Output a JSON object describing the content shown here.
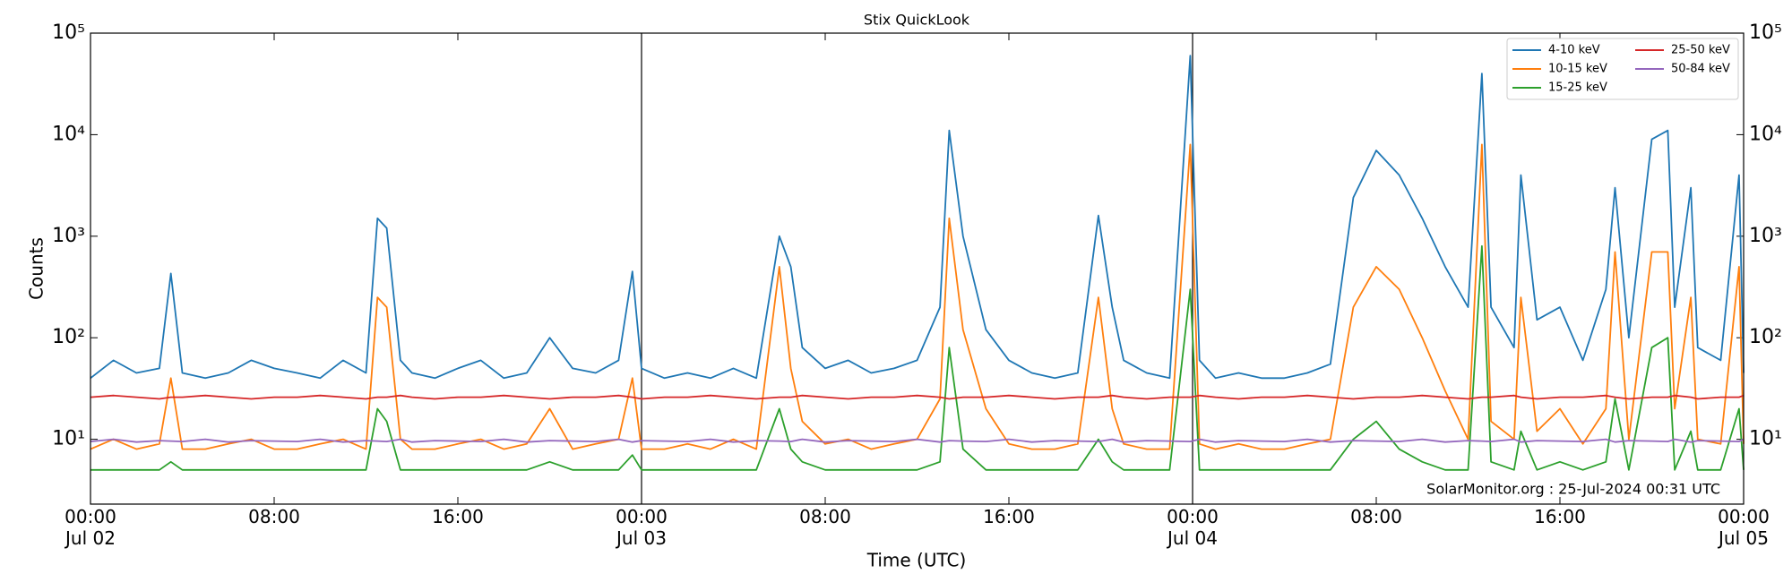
{
  "chart_data": {
    "type": "line",
    "title": "Stix QuickLook",
    "x_label": "Time (UTC)",
    "y_label": "Counts",
    "annotation": "SolarMonitor.org : 25-Jul-2024 00:31 UTC",
    "log_y": true,
    "legend": "upper right",
    "legend_columns": 2,
    "xlim": [
      0,
      72
    ],
    "ylim": [
      2.3,
      100000
    ],
    "xticks": [
      {
        "value": 0,
        "label": "00:00\nJul 02"
      },
      {
        "value": 8,
        "label": "08:00"
      },
      {
        "value": 16,
        "label": "16:00"
      },
      {
        "value": 24,
        "label": "00:00\nJul 03"
      },
      {
        "value": 32,
        "label": "08:00"
      },
      {
        "value": 40,
        "label": "16:00"
      },
      {
        "value": 48,
        "label": "00:00\nJul 04"
      },
      {
        "value": 56,
        "label": "08:00"
      },
      {
        "value": 64,
        "label": "16:00"
      },
      {
        "value": 72,
        "label": "00:00\nJul 05"
      }
    ],
    "yticks": [
      {
        "value": 10,
        "label": "10¹"
      },
      {
        "value": 100,
        "label": "10²"
      },
      {
        "value": 1000,
        "label": "10³"
      },
      {
        "value": 10000,
        "label": "10⁴"
      },
      {
        "value": 100000,
        "label": "10⁵"
      }
    ],
    "x": [
      0,
      1,
      2,
      3,
      3.5,
      4,
      5,
      6,
      7,
      8,
      9,
      10,
      11,
      12,
      12.5,
      12.9,
      13.5,
      14,
      15,
      16,
      17,
      18,
      19,
      20,
      21,
      22,
      23,
      23.6,
      24,
      25,
      26,
      27,
      28,
      29,
      30,
      30.5,
      31,
      32,
      33,
      34,
      35,
      36,
      37,
      37.4,
      38,
      39,
      40,
      41,
      42,
      43,
      43.9,
      44.5,
      45,
      46,
      47,
      47.9,
      48.3,
      49,
      50,
      51,
      52,
      53,
      54,
      55,
      56,
      57,
      58,
      59,
      60,
      60.6,
      61,
      62,
      62.3,
      63,
      64,
      65,
      66,
      66.4,
      67,
      68,
      68.7,
      69,
      69.7,
      70,
      71,
      71.8,
      72
    ],
    "series": [
      {
        "name": "4-10 keV",
        "color": "#1f77b4",
        "values": [
          40,
          60,
          45,
          50,
          430,
          45,
          40,
          45,
          60,
          50,
          45,
          40,
          60,
          45,
          1500,
          1200,
          60,
          45,
          40,
          50,
          60,
          40,
          45,
          100,
          50,
          45,
          60,
          450,
          50,
          40,
          45,
          40,
          50,
          40,
          1000,
          500,
          80,
          50,
          60,
          45,
          50,
          60,
          200,
          11000,
          1000,
          120,
          60,
          45,
          40,
          45,
          1600,
          200,
          60,
          45,
          40,
          60000,
          60,
          40,
          45,
          40,
          40,
          45,
          55,
          2400,
          7000,
          4000,
          1500,
          500,
          200,
          40000,
          200,
          80,
          4000,
          150,
          200,
          60,
          300,
          3000,
          100,
          9000,
          11000,
          200,
          3000,
          80,
          60,
          4000,
          45
        ]
      },
      {
        "name": "10-15 keV",
        "color": "#ff7f0e",
        "values": [
          8,
          10,
          8,
          9,
          40,
          8,
          8,
          9,
          10,
          8,
          8,
          9,
          10,
          8,
          250,
          200,
          10,
          8,
          8,
          9,
          10,
          8,
          9,
          20,
          8,
          9,
          10,
          40,
          8,
          8,
          9,
          8,
          10,
          8,
          500,
          50,
          15,
          9,
          10,
          8,
          9,
          10,
          25,
          1500,
          120,
          20,
          9,
          8,
          8,
          9,
          250,
          20,
          9,
          8,
          8,
          8000,
          9,
          8,
          9,
          8,
          8,
          9,
          10,
          200,
          500,
          300,
          100,
          30,
          10,
          8000,
          15,
          10,
          250,
          12,
          20,
          9,
          20,
          700,
          10,
          700,
          700,
          20,
          250,
          10,
          9,
          500,
          9
        ]
      },
      {
        "name": "15-25 keV",
        "color": "#2ca02c",
        "values": [
          5,
          5,
          5,
          5,
          6,
          5,
          5,
          5,
          5,
          5,
          5,
          5,
          5,
          5,
          20,
          15,
          5,
          5,
          5,
          5,
          5,
          5,
          5,
          6,
          5,
          5,
          5,
          7,
          5,
          5,
          5,
          5,
          5,
          5,
          20,
          8,
          6,
          5,
          5,
          5,
          5,
          5,
          6,
          80,
          8,
          5,
          5,
          5,
          5,
          5,
          10,
          6,
          5,
          5,
          5,
          300,
          5,
          5,
          5,
          5,
          5,
          5,
          5,
          10,
          15,
          8,
          6,
          5,
          5,
          800,
          6,
          5,
          12,
          5,
          6,
          5,
          6,
          25,
          5,
          80,
          100,
          5,
          12,
          5,
          5,
          20,
          5
        ]
      },
      {
        "name": "25-50 keV",
        "color": "#d62728",
        "values": [
          26,
          27,
          26,
          25,
          26,
          26,
          27,
          26,
          25,
          26,
          26,
          27,
          26,
          25,
          26,
          26,
          27,
          26,
          25,
          26,
          26,
          27,
          26,
          25,
          26,
          26,
          27,
          26,
          25,
          26,
          26,
          27,
          26,
          25,
          26,
          26,
          27,
          26,
          25,
          26,
          26,
          27,
          26,
          25,
          26,
          26,
          27,
          26,
          25,
          26,
          26,
          27,
          26,
          25,
          26,
          26,
          27,
          26,
          25,
          26,
          26,
          27,
          26,
          25,
          26,
          26,
          27,
          26,
          25,
          26,
          26,
          27,
          26,
          25,
          26,
          26,
          27,
          26,
          25,
          26,
          26,
          27,
          26,
          25,
          26,
          26,
          27
        ]
      },
      {
        "name": "50-84 keV",
        "color": "#9467bd",
        "values": [
          9.5,
          10,
          9.4,
          9.7,
          9.6,
          9.5,
          10,
          9.4,
          9.7,
          9.6,
          9.5,
          10,
          9.4,
          9.7,
          9.6,
          9.5,
          10,
          9.4,
          9.7,
          9.6,
          9.5,
          10,
          9.4,
          9.7,
          9.6,
          9.5,
          10,
          9.4,
          9.7,
          9.6,
          9.5,
          10,
          9.4,
          9.7,
          9.6,
          9.5,
          10,
          9.4,
          9.7,
          9.6,
          9.5,
          10,
          9.4,
          9.7,
          9.6,
          9.5,
          10,
          9.4,
          9.7,
          9.6,
          9.5,
          10,
          9.4,
          9.7,
          9.6,
          9.5,
          10,
          9.4,
          9.7,
          9.6,
          9.5,
          10,
          9.4,
          9.7,
          9.6,
          9.5,
          10,
          9.4,
          9.7,
          9.6,
          9.5,
          10,
          9.4,
          9.7,
          9.6,
          9.5,
          10,
          9.4,
          9.7,
          9.6,
          9.5,
          10,
          9.4,
          9.7,
          9.6,
          9.5,
          10
        ]
      }
    ]
  }
}
